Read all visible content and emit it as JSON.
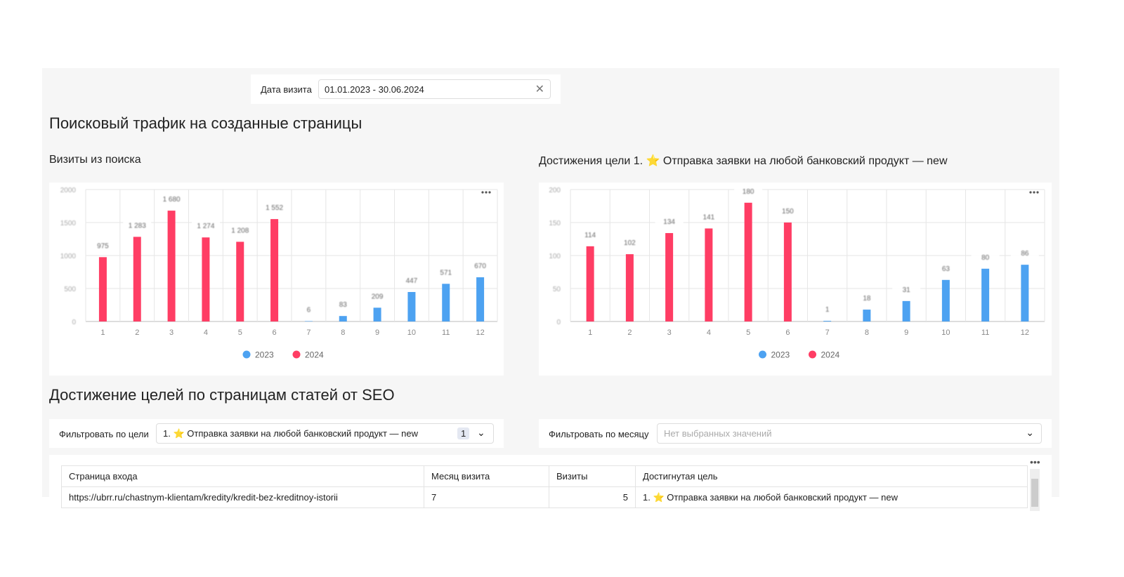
{
  "filter": {
    "label": "Дата визита",
    "value": "01.01.2023 - 30.06.2024"
  },
  "section1_title": "Поисковый трафик на созданные страницы",
  "chart_data": [
    {
      "type": "bar",
      "title": "Визиты из поиска",
      "categories": [
        "1",
        "2",
        "3",
        "4",
        "5",
        "6",
        "7",
        "8",
        "9",
        "10",
        "11",
        "12"
      ],
      "series": [
        {
          "name": "2023",
          "color": "#4da2f1",
          "values": [
            null,
            null,
            null,
            null,
            null,
            null,
            6,
            83,
            209,
            447,
            571,
            670
          ]
        },
        {
          "name": "2024",
          "color": "#ff3d64",
          "values": [
            975,
            1283,
            1680,
            1274,
            1208,
            1552,
            null,
            null,
            null,
            null,
            null,
            null
          ],
          "value_labels": [
            "975",
            "1 283",
            "1 680",
            "1 274",
            "1 208",
            "1 552",
            null,
            null,
            null,
            null,
            null,
            null
          ]
        }
      ],
      "ylim": [
        0,
        2000
      ],
      "yticks": [
        0,
        500,
        1000,
        1500,
        2000
      ],
      "grid": true,
      "legend": "bottom"
    },
    {
      "type": "bar",
      "title": "Достижения цели 1. ⭐ Отправка заявки на любой банковский продукт — new",
      "categories": [
        "1",
        "2",
        "3",
        "4",
        "5",
        "6",
        "7",
        "8",
        "9",
        "10",
        "11",
        "12"
      ],
      "series": [
        {
          "name": "2023",
          "color": "#4da2f1",
          "values": [
            null,
            null,
            null,
            null,
            null,
            null,
            1,
            18,
            31,
            63,
            80,
            86
          ]
        },
        {
          "name": "2024",
          "color": "#ff3d64",
          "values": [
            114,
            102,
            134,
            141,
            180,
            150,
            null,
            null,
            null,
            null,
            null,
            null
          ]
        }
      ],
      "ylim": [
        0,
        200
      ],
      "yticks": [
        0,
        50,
        100,
        150,
        200
      ],
      "grid": true,
      "legend": "bottom"
    }
  ],
  "section2_title": "Достижение целей по страницам статей от SEO",
  "goal_filter": {
    "label": "Фильтровать по цели",
    "value": "1. ⭐ Отправка заявки на любой банковский продукт — new",
    "count": "1"
  },
  "month_filter": {
    "label": "Фильтровать по месяцу",
    "placeholder": "Нет выбранных значений"
  },
  "table": {
    "columns": [
      "Страница входа",
      "Месяц визита",
      "Визиты",
      "Достигнутая цель"
    ],
    "rows": [
      [
        "https://ubrr.ru/chastnym-klientam/kredity/kredit-bez-kreditnoy-istorii",
        "7",
        "5",
        "1. ⭐ Отправка заявки на любой банковский продукт — new"
      ]
    ]
  }
}
